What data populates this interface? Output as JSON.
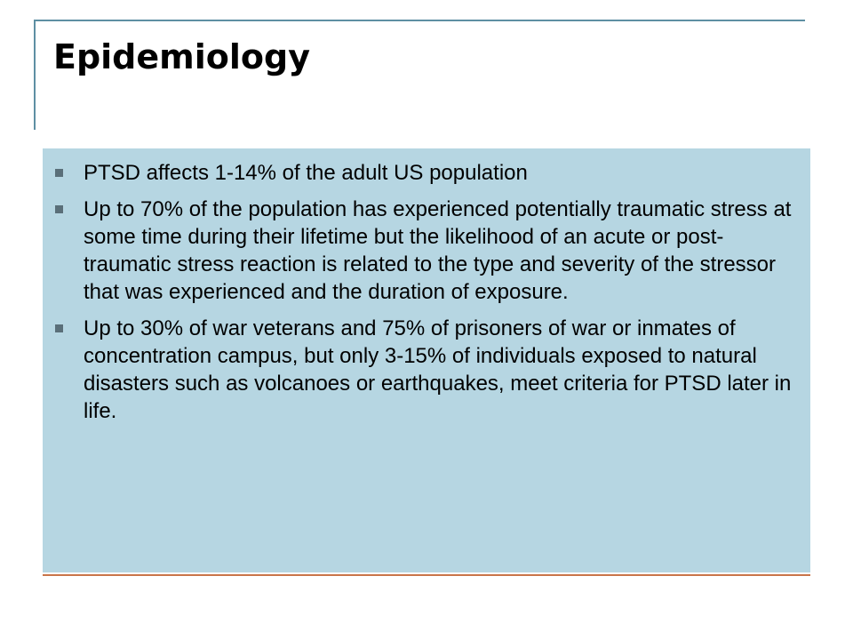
{
  "slide": {
    "title": "Epidemiology",
    "bullets": [
      "PTSD affects 1-14% of the adult US population",
      "Up to 70% of the population has experienced potentially traumatic stress at some time during their lifetime but the likelihood of an acute or post-traumatic stress reaction is related to the type and severity of the stressor that was experienced and the duration of exposure.",
      "Up to 30% of war veterans and 75% of prisoners of war or inmates of concentration campus, but only 3-15% of individuals exposed to natural disasters such as volcanoes or earthquakes, meet criteria for PTSD later in life."
    ]
  },
  "colors": {
    "title_frame": "#5e8fa3",
    "content_background": "#b6d6e2",
    "bottom_rule": "#c9754a",
    "bullet_marker": "#5a6f79"
  },
  "icons": {
    "bullet": "square-bullet-icon"
  }
}
